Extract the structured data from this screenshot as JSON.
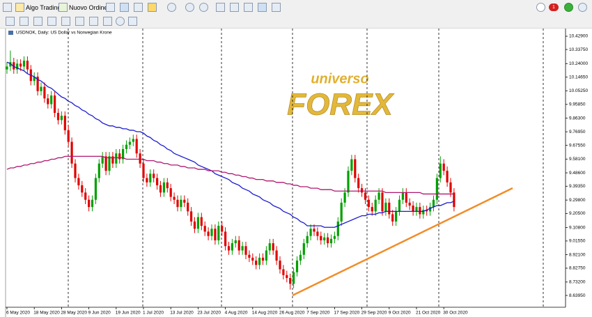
{
  "toolbar": {
    "algo_trading": "Algo Trading",
    "new_order": "Nuovo Ordine",
    "badge": 1
  },
  "watermark": {
    "top": "universo",
    "main": "FOREX"
  },
  "chart_data": {
    "type": "candlestick",
    "title": "USDNOK, Daily: US Dollar vs Norwegian Krone",
    "up_color": "#00a000",
    "down_color": "#e00000",
    "grid": false,
    "ylim": [
      8.558,
      10.482
    ],
    "yticks": [
      {
        "value": 10.429,
        "label": "10.42900"
      },
      {
        "value": 10.3375,
        "label": "10.33750"
      },
      {
        "value": 10.24,
        "label": "10.24000"
      },
      {
        "value": 10.1465,
        "label": "10.14650"
      },
      {
        "value": 10.0525,
        "label": "10.05250"
      },
      {
        "value": 9.9585,
        "label": "9.95850"
      },
      {
        "value": 9.863,
        "label": "9.86300"
      },
      {
        "value": 9.7695,
        "label": "9.76950"
      },
      {
        "value": 9.6755,
        "label": "9.67550"
      },
      {
        "value": 9.581,
        "label": "9.58100"
      },
      {
        "value": 9.486,
        "label": "9.48600"
      },
      {
        "value": 9.3935,
        "label": "9.39350"
      },
      {
        "value": 9.298,
        "label": "9.29800"
      },
      {
        "value": 9.205,
        "label": "9.20500"
      },
      {
        "value": 9.108,
        "label": "9.10800"
      },
      {
        "value": 9.0155,
        "label": "9.01550"
      },
      {
        "value": 8.921,
        "label": "8.92100"
      },
      {
        "value": 8.8275,
        "label": "8.82750"
      },
      {
        "value": 8.732,
        "label": "8.73200"
      },
      {
        "value": 8.6395,
        "label": "8.63950"
      }
    ],
    "categories": [
      "6 May 2020",
      null,
      null,
      null,
      null,
      null,
      null,
      null,
      "18 May 2020",
      null,
      null,
      null,
      null,
      null,
      null,
      null,
      "28 May 2020",
      null,
      null,
      null,
      null,
      null,
      null,
      null,
      "9 Jun 2020",
      null,
      null,
      null,
      null,
      null,
      null,
      null,
      "19 Jun 2020",
      null,
      null,
      null,
      null,
      null,
      null,
      null,
      "1 Jul 2020",
      null,
      null,
      null,
      null,
      null,
      null,
      null,
      "13 Jul 2020",
      null,
      null,
      null,
      null,
      null,
      null,
      null,
      "23 Jul 2020",
      null,
      null,
      null,
      null,
      null,
      null,
      null,
      "4 Aug 2020",
      null,
      null,
      null,
      null,
      null,
      null,
      null,
      "14 Aug 2020",
      null,
      null,
      null,
      null,
      null,
      null,
      null,
      "26 Aug 2020",
      null,
      null,
      null,
      null,
      null,
      null,
      null,
      "7 Sep 2020",
      null,
      null,
      null,
      null,
      null,
      null,
      null,
      "17 Sep 2020",
      null,
      null,
      null,
      null,
      null,
      null,
      null,
      "29 Sep 2020",
      null,
      null,
      null,
      null,
      null,
      null,
      null,
      "9 Oct 2020",
      null,
      null,
      null,
      null,
      null,
      null,
      null,
      "21 Oct 2020",
      null,
      null,
      null,
      null,
      null,
      null,
      null,
      "30 Oct 2020",
      null,
      null,
      null
    ],
    "open": [
      10.2,
      10.22,
      10.25,
      10.2,
      10.24,
      10.22,
      10.26,
      10.2,
      10.12,
      10.15,
      10.05,
      10.08,
      10.0,
      9.96,
      10.02,
      9.9,
      9.85,
      9.88,
      9.78,
      9.7,
      9.55,
      9.45,
      9.4,
      9.35,
      9.3,
      9.25,
      9.3,
      9.45,
      9.55,
      9.6,
      9.5,
      9.6,
      9.55,
      9.62,
      9.58,
      9.65,
      9.68,
      9.7,
      9.72,
      9.62,
      9.55,
      9.45,
      9.42,
      9.48,
      9.45,
      9.4,
      9.35,
      9.42,
      9.38,
      9.32,
      9.3,
      9.25,
      9.3,
      9.28,
      9.22,
      9.15,
      9.1,
      9.18,
      9.12,
      9.08,
      9.05,
      9.1,
      9.02,
      9.12,
      9.08,
      8.98,
      8.95,
      9.0,
      9.02,
      8.95,
      8.98,
      8.92,
      8.9,
      8.88,
      8.85,
      8.9,
      8.88,
      8.95,
      9.0,
      8.95,
      8.88,
      8.82,
      8.78,
      8.76,
      8.72,
      8.8,
      8.88,
      8.92,
      9.0,
      9.05,
      9.1,
      9.08,
      9.05,
      9.02,
      9.04,
      9.0,
      9.03,
      9.05,
      9.15,
      9.28,
      9.35,
      9.5,
      9.58,
      9.45,
      9.38,
      9.35,
      9.3,
      9.25,
      9.22,
      9.3,
      9.35,
      9.22,
      9.28,
      9.2,
      9.15,
      9.22,
      9.3,
      9.35,
      9.28,
      9.26,
      9.22,
      9.25,
      9.2,
      9.23,
      9.22,
      9.25,
      9.3,
      9.45,
      9.55,
      9.5,
      9.42,
      9.35
    ],
    "high": [
      10.25,
      10.33,
      10.28,
      10.27,
      10.27,
      10.29,
      10.29,
      10.23,
      10.18,
      10.18,
      10.11,
      10.11,
      10.03,
      10.05,
      10.05,
      9.93,
      9.91,
      9.91,
      9.81,
      9.73,
      9.58,
      9.48,
      9.43,
      9.38,
      9.33,
      9.33,
      9.48,
      9.58,
      9.63,
      9.63,
      9.63,
      9.63,
      9.65,
      9.65,
      9.68,
      9.71,
      9.73,
      9.75,
      9.75,
      9.65,
      9.58,
      9.48,
      9.51,
      9.51,
      9.48,
      9.43,
      9.45,
      9.45,
      9.41,
      9.35,
      9.33,
      9.33,
      9.33,
      9.31,
      9.25,
      9.18,
      9.21,
      9.21,
      9.15,
      9.11,
      9.13,
      9.13,
      9.15,
      9.15,
      9.11,
      9.01,
      9.03,
      9.05,
      9.05,
      9.01,
      9.01,
      8.95,
      8.93,
      8.91,
      8.93,
      8.93,
      8.98,
      9.03,
      9.03,
      8.98,
      8.91,
      8.85,
      8.81,
      8.79,
      8.83,
      8.91,
      8.95,
      9.03,
      9.08,
      9.13,
      9.13,
      9.11,
      9.08,
      9.07,
      9.07,
      9.06,
      9.08,
      9.18,
      9.31,
      9.38,
      9.53,
      9.61,
      9.61,
      9.48,
      9.41,
      9.38,
      9.33,
      9.28,
      9.33,
      9.38,
      9.38,
      9.31,
      9.31,
      9.23,
      9.25,
      9.33,
      9.38,
      9.38,
      9.31,
      9.29,
      9.28,
      9.28,
      9.26,
      9.26,
      9.28,
      9.33,
      9.48,
      9.6,
      9.58,
      9.53,
      9.45,
      9.38
    ],
    "low": [
      10.17,
      10.19,
      10.17,
      10.17,
      10.19,
      10.19,
      10.17,
      10.09,
      10.09,
      10.02,
      10.02,
      9.97,
      9.93,
      9.93,
      9.87,
      9.82,
      9.82,
      9.75,
      9.67,
      9.52,
      9.42,
      9.37,
      9.32,
      9.27,
      9.22,
      9.22,
      9.27,
      9.42,
      9.52,
      9.47,
      9.47,
      9.52,
      9.52,
      9.55,
      9.55,
      9.62,
      9.65,
      9.67,
      9.59,
      9.52,
      9.42,
      9.39,
      9.39,
      9.42,
      9.37,
      9.32,
      9.32,
      9.35,
      9.29,
      9.27,
      9.22,
      9.22,
      9.25,
      9.19,
      9.12,
      9.07,
      9.07,
      9.09,
      9.05,
      9.02,
      9.02,
      8.99,
      8.99,
      9.05,
      8.95,
      8.92,
      8.92,
      8.97,
      8.92,
      8.92,
      8.89,
      8.87,
      8.85,
      8.82,
      8.82,
      8.85,
      8.85,
      8.92,
      8.92,
      8.85,
      8.79,
      8.75,
      8.73,
      8.68,
      8.69,
      8.77,
      8.85,
      8.89,
      8.97,
      9.02,
      9.05,
      9.02,
      8.99,
      8.99,
      8.97,
      8.97,
      9.0,
      9.02,
      9.12,
      9.25,
      9.32,
      9.47,
      9.42,
      9.35,
      9.32,
      9.27,
      9.22,
      9.19,
      9.19,
      9.27,
      9.19,
      9.19,
      9.17,
      9.12,
      9.12,
      9.19,
      9.27,
      9.25,
      9.23,
      9.19,
      9.19,
      9.17,
      9.17,
      9.19,
      9.19,
      9.22,
      9.27,
      9.42,
      9.47,
      9.39,
      9.32,
      9.22
    ],
    "close": [
      10.22,
      10.25,
      10.2,
      10.24,
      10.22,
      10.26,
      10.2,
      10.12,
      10.15,
      10.05,
      10.08,
      10.0,
      9.96,
      10.02,
      9.9,
      9.85,
      9.88,
      9.78,
      9.7,
      9.55,
      9.45,
      9.4,
      9.35,
      9.3,
      9.25,
      9.3,
      9.45,
      9.55,
      9.6,
      9.5,
      9.6,
      9.55,
      9.62,
      9.58,
      9.65,
      9.68,
      9.7,
      9.72,
      9.62,
      9.55,
      9.45,
      9.42,
      9.48,
      9.45,
      9.4,
      9.35,
      9.42,
      9.38,
      9.32,
      9.3,
      9.25,
      9.3,
      9.28,
      9.22,
      9.15,
      9.1,
      9.18,
      9.12,
      9.08,
      9.05,
      9.1,
      9.02,
      9.12,
      9.08,
      8.98,
      8.95,
      9.0,
      9.02,
      8.95,
      8.98,
      8.92,
      8.9,
      8.88,
      8.85,
      8.9,
      8.88,
      8.95,
      9.0,
      8.95,
      8.88,
      8.82,
      8.78,
      8.76,
      8.72,
      8.8,
      8.88,
      8.92,
      9.0,
      9.05,
      9.1,
      9.08,
      9.05,
      9.02,
      9.04,
      9.0,
      9.03,
      9.05,
      9.15,
      9.28,
      9.35,
      9.5,
      9.58,
      9.45,
      9.38,
      9.35,
      9.3,
      9.25,
      9.22,
      9.3,
      9.35,
      9.22,
      9.28,
      9.2,
      9.15,
      9.22,
      9.3,
      9.35,
      9.28,
      9.26,
      9.22,
      9.25,
      9.2,
      9.23,
      9.22,
      9.25,
      9.3,
      9.45,
      9.55,
      9.5,
      9.42,
      9.35,
      9.25
    ],
    "overlays": [
      {
        "color": "#1a1ad0",
        "values": [
          10.25,
          10.24,
          10.22,
          10.21,
          10.2,
          10.19,
          10.17,
          10.16,
          10.15,
          10.13,
          10.12,
          10.1,
          10.08,
          10.07,
          10.05,
          10.03,
          10.01,
          10.0,
          9.98,
          9.97,
          9.95,
          9.94,
          9.92,
          9.91,
          9.89,
          9.88,
          9.86,
          9.85,
          9.83,
          9.82,
          9.81,
          9.81,
          9.8,
          9.8,
          9.79,
          9.79,
          9.78,
          9.78,
          9.77,
          9.77,
          9.76,
          9.74,
          9.73,
          9.71,
          9.7,
          9.68,
          9.67,
          9.65,
          9.64,
          9.62,
          9.61,
          9.6,
          9.59,
          9.58,
          9.57,
          9.56,
          9.54,
          9.53,
          9.52,
          9.51,
          9.5,
          9.48,
          9.47,
          9.46,
          9.45,
          9.44,
          9.42,
          9.41,
          9.4,
          9.38,
          9.37,
          9.36,
          9.34,
          9.33,
          9.32,
          9.3,
          9.29,
          9.28,
          9.26,
          9.25,
          9.24,
          9.22,
          9.21,
          9.2,
          9.18,
          9.17,
          9.15,
          9.14,
          9.12,
          9.12,
          9.12,
          9.12,
          9.12,
          9.11,
          9.11,
          9.11,
          9.11,
          9.12,
          9.13,
          9.14,
          9.15,
          9.16,
          9.17,
          9.18,
          9.19,
          9.19,
          9.2,
          9.2,
          9.2,
          9.21,
          9.21,
          9.22,
          9.22,
          9.22,
          9.22,
          9.22,
          9.22,
          9.22,
          9.22,
          9.22,
          9.22,
          9.22,
          9.22,
          9.23,
          9.24,
          9.25,
          9.26,
          9.26,
          9.27,
          9.28,
          9.28,
          9.29
        ]
      },
      {
        "color": "#b0166e",
        "values": [
          9.51,
          9.52,
          9.52,
          9.53,
          9.53,
          9.54,
          9.54,
          9.55,
          9.55,
          9.56,
          9.56,
          9.57,
          9.57,
          9.58,
          9.58,
          9.59,
          9.59,
          9.6,
          9.6,
          9.6,
          9.6,
          9.6,
          9.6,
          9.6,
          9.6,
          9.6,
          9.6,
          9.6,
          9.6,
          9.59,
          9.59,
          9.59,
          9.59,
          9.59,
          9.59,
          9.58,
          9.58,
          9.58,
          9.58,
          9.58,
          9.58,
          9.57,
          9.57,
          9.57,
          9.56,
          9.56,
          9.55,
          9.55,
          9.54,
          9.54,
          9.54,
          9.53,
          9.53,
          9.52,
          9.52,
          9.52,
          9.51,
          9.51,
          9.51,
          9.5,
          9.5,
          9.5,
          9.5,
          9.49,
          9.49,
          9.48,
          9.48,
          9.47,
          9.47,
          9.46,
          9.46,
          9.45,
          9.45,
          9.44,
          9.44,
          9.44,
          9.43,
          9.43,
          9.43,
          9.42,
          9.42,
          9.42,
          9.41,
          9.41,
          9.4,
          9.4,
          9.39,
          9.39,
          9.39,
          9.38,
          9.38,
          9.38,
          9.37,
          9.37,
          9.37,
          9.37,
          9.36,
          9.36,
          9.36,
          9.36,
          9.36,
          9.36,
          9.36,
          9.36,
          9.36,
          9.36,
          9.36,
          9.36,
          9.36,
          9.36,
          9.36,
          9.35,
          9.35,
          9.35,
          9.35,
          9.35,
          9.35,
          9.35,
          9.35,
          9.35,
          9.35,
          9.35,
          9.34,
          9.34,
          9.34,
          9.34,
          9.34,
          9.34,
          9.34,
          9.34,
          9.34,
          9.34
        ]
      }
    ]
  }
}
